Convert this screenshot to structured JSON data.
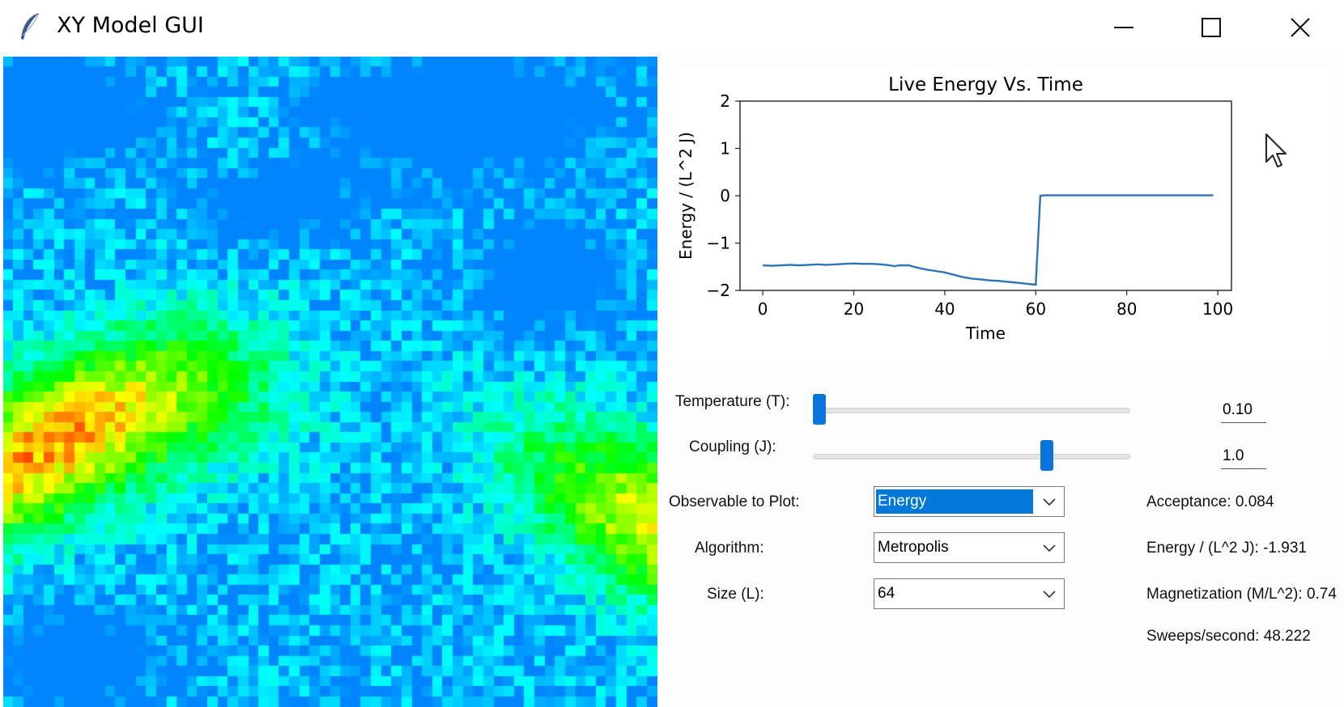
{
  "window": {
    "title": "XY Model GUI",
    "icons": [
      "feather-icon",
      "minimize-icon",
      "maximize-icon",
      "close-icon"
    ]
  },
  "lattice": {
    "colormap": "hsv",
    "size": 64
  },
  "chart_data": {
    "type": "line",
    "title": "Live Energy Vs. Time",
    "xlabel": "Time",
    "ylabel": "Energy / (L^2 J)",
    "xlim": [
      -5,
      103
    ],
    "ylim": [
      -2,
      2
    ],
    "xticks": [
      "0",
      "20",
      "40",
      "60",
      "80",
      "100"
    ],
    "xtick_values": [
      0,
      20,
      40,
      60,
      80,
      100
    ],
    "yticks": [
      "2",
      "1",
      "0",
      "−1",
      "−2"
    ],
    "ytick_values": [
      2,
      1,
      0,
      -1,
      -2
    ],
    "line_color": "#2f75b5",
    "series": [
      {
        "x": [
          0,
          2,
          4,
          6,
          8,
          10,
          12,
          14,
          16,
          18,
          20,
          22,
          24,
          26,
          28,
          29,
          30,
          32,
          34,
          36,
          38,
          40,
          42,
          44,
          46,
          48,
          50,
          52,
          54,
          56,
          58,
          60,
          61,
          62,
          66,
          70,
          75,
          80,
          85,
          90,
          95,
          99
        ],
        "y": [
          -1.47,
          -1.48,
          -1.47,
          -1.46,
          -1.47,
          -1.46,
          -1.45,
          -1.46,
          -1.45,
          -1.44,
          -1.43,
          -1.44,
          -1.44,
          -1.45,
          -1.47,
          -1.49,
          -1.47,
          -1.47,
          -1.52,
          -1.56,
          -1.59,
          -1.62,
          -1.67,
          -1.72,
          -1.75,
          -1.77,
          -1.79,
          -1.8,
          -1.82,
          -1.84,
          -1.86,
          -1.88,
          0.0,
          0.01,
          0.01,
          0.01,
          0.01,
          0.01,
          0.01,
          0.01,
          0.01,
          0.01
        ]
      }
    ]
  },
  "controls": {
    "temperature": {
      "label": "Temperature (T):",
      "value": "0.10",
      "fraction": 0.02
    },
    "coupling": {
      "label": "Coupling (J):",
      "value": "1.0",
      "fraction": 0.74
    },
    "observable": {
      "label": "Observable to Plot:",
      "selected": "Energy"
    },
    "algorithm": {
      "label": "Algorithm:",
      "selected": "Metropolis"
    },
    "size": {
      "label": "Size (L):",
      "selected": "64"
    }
  },
  "stats": {
    "acceptance": "Acceptance: 0.084",
    "energy": "Energy / (L^2 J): -1.931",
    "magnetization": "Magnetization (M/L^2): 0.74",
    "sweeps": "Sweeps/second: 48.222"
  }
}
